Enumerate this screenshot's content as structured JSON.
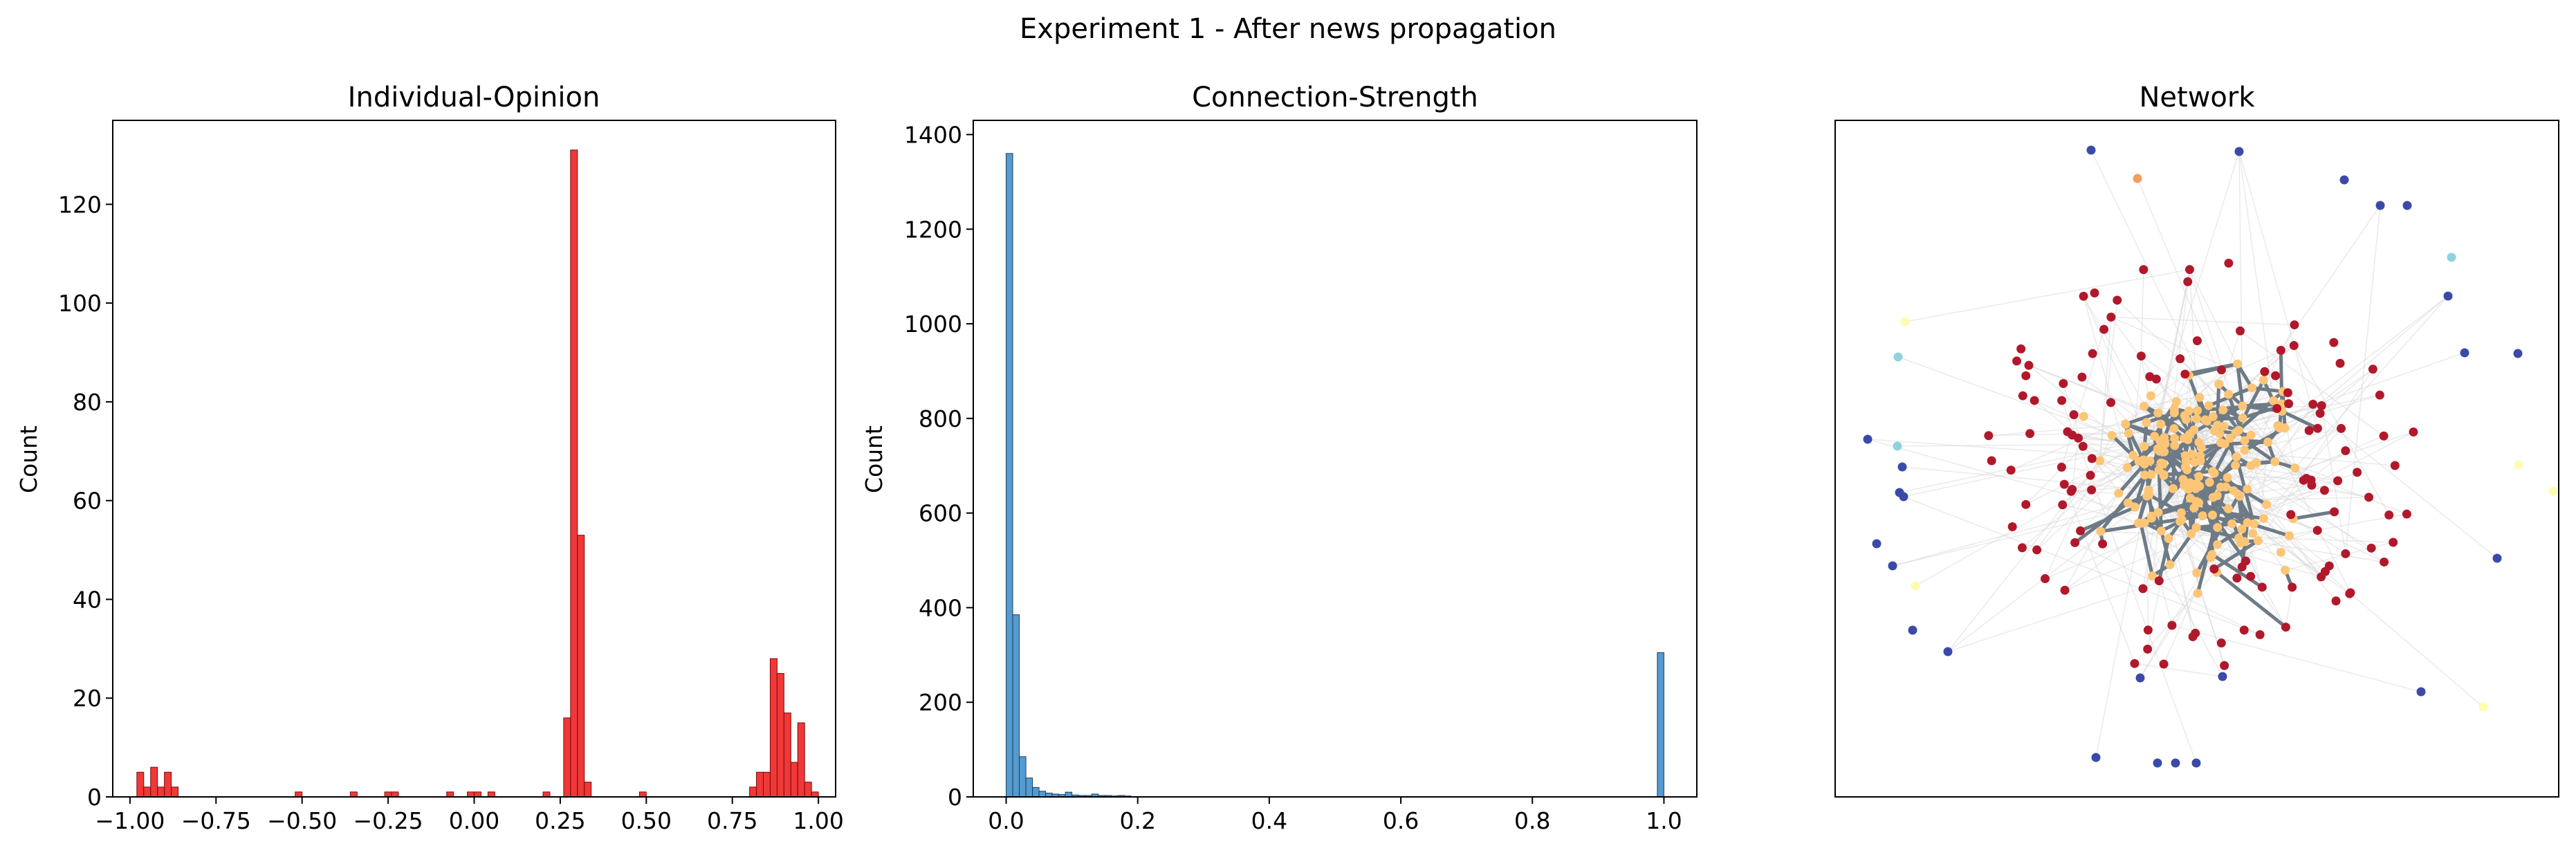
{
  "figure": {
    "suptitle": "Experiment 1 - After news propagation"
  },
  "chart_data": [
    {
      "type": "bar",
      "title": "Individual-Opinion",
      "xlabel": "",
      "ylabel": "Count",
      "xlim": [
        -1.05,
        1.05
      ],
      "ylim": [
        0,
        137
      ],
      "xticks": [
        -1.0,
        -0.75,
        -0.5,
        -0.25,
        0.0,
        0.25,
        0.5,
        0.75,
        1.0
      ],
      "xtick_labels": [
        "−1.00",
        "−0.75",
        "−0.50",
        "−0.25",
        "0.00",
        "0.25",
        "0.50",
        "0.75",
        "1.00"
      ],
      "yticks": [
        0,
        20,
        40,
        60,
        80,
        100,
        120
      ],
      "ytick_labels": [
        "0",
        "20",
        "40",
        "60",
        "80",
        "100",
        "120"
      ],
      "bin_width": 0.02,
      "bins": [
        [
          -0.98,
          5
        ],
        [
          -0.96,
          2
        ],
        [
          -0.94,
          6
        ],
        [
          -0.92,
          2
        ],
        [
          -0.9,
          5
        ],
        [
          -0.88,
          2
        ],
        [
          -0.52,
          1
        ],
        [
          -0.36,
          1
        ],
        [
          -0.26,
          1
        ],
        [
          -0.24,
          1
        ],
        [
          -0.08,
          1
        ],
        [
          -0.02,
          1
        ],
        [
          0.0,
          1
        ],
        [
          0.04,
          1
        ],
        [
          0.2,
          1
        ],
        [
          0.26,
          16
        ],
        [
          0.28,
          131
        ],
        [
          0.3,
          53
        ],
        [
          0.32,
          3
        ],
        [
          0.48,
          1
        ],
        [
          0.8,
          2
        ],
        [
          0.82,
          5
        ],
        [
          0.84,
          5
        ],
        [
          0.86,
          28
        ],
        [
          0.88,
          25
        ],
        [
          0.9,
          17
        ],
        [
          0.92,
          7
        ],
        [
          0.94,
          15
        ],
        [
          0.96,
          3
        ],
        [
          0.98,
          1
        ]
      ],
      "color": "#ee1c1c",
      "edge_color": "#7a0a0a"
    },
    {
      "type": "bar",
      "title": "Connection-Strength",
      "xlabel": "",
      "ylabel": "Count",
      "xlim": [
        -0.05,
        1.05
      ],
      "ylim": [
        0,
        1430
      ],
      "xticks": [
        0.0,
        0.2,
        0.4,
        0.6,
        0.8,
        1.0
      ],
      "xtick_labels": [
        "0.0",
        "0.2",
        "0.4",
        "0.6",
        "0.8",
        "1.0"
      ],
      "yticks": [
        0,
        200,
        400,
        600,
        800,
        1000,
        1200,
        1400
      ],
      "ytick_labels": [
        "0",
        "200",
        "400",
        "600",
        "800",
        "1000",
        "1200",
        "1400"
      ],
      "bin_width": 0.01,
      "bins": [
        [
          0.0,
          1360
        ],
        [
          0.01,
          385
        ],
        [
          0.02,
          85
        ],
        [
          0.03,
          40
        ],
        [
          0.04,
          20
        ],
        [
          0.05,
          12
        ],
        [
          0.06,
          8
        ],
        [
          0.07,
          6
        ],
        [
          0.08,
          5
        ],
        [
          0.09,
          10
        ],
        [
          0.1,
          4
        ],
        [
          0.11,
          3
        ],
        [
          0.12,
          3
        ],
        [
          0.13,
          6
        ],
        [
          0.14,
          3
        ],
        [
          0.15,
          3
        ],
        [
          0.16,
          2
        ],
        [
          0.17,
          3
        ],
        [
          0.18,
          2
        ],
        [
          0.99,
          305
        ]
      ],
      "color": "#3d8dc9",
      "edge_color": "#1a3d58"
    }
  ],
  "network": {
    "title": "Network",
    "node_colors": {
      "core": "#fdc576",
      "ring": "#b2182b",
      "outlier": "#3b4aa8",
      "pale": "#fffcb0",
      "cyan": "#8fd3e0",
      "orange": "#f49d5c"
    },
    "edge_color_strong": "#6e7b86",
    "edge_color_weak": "#d9d9d9"
  }
}
